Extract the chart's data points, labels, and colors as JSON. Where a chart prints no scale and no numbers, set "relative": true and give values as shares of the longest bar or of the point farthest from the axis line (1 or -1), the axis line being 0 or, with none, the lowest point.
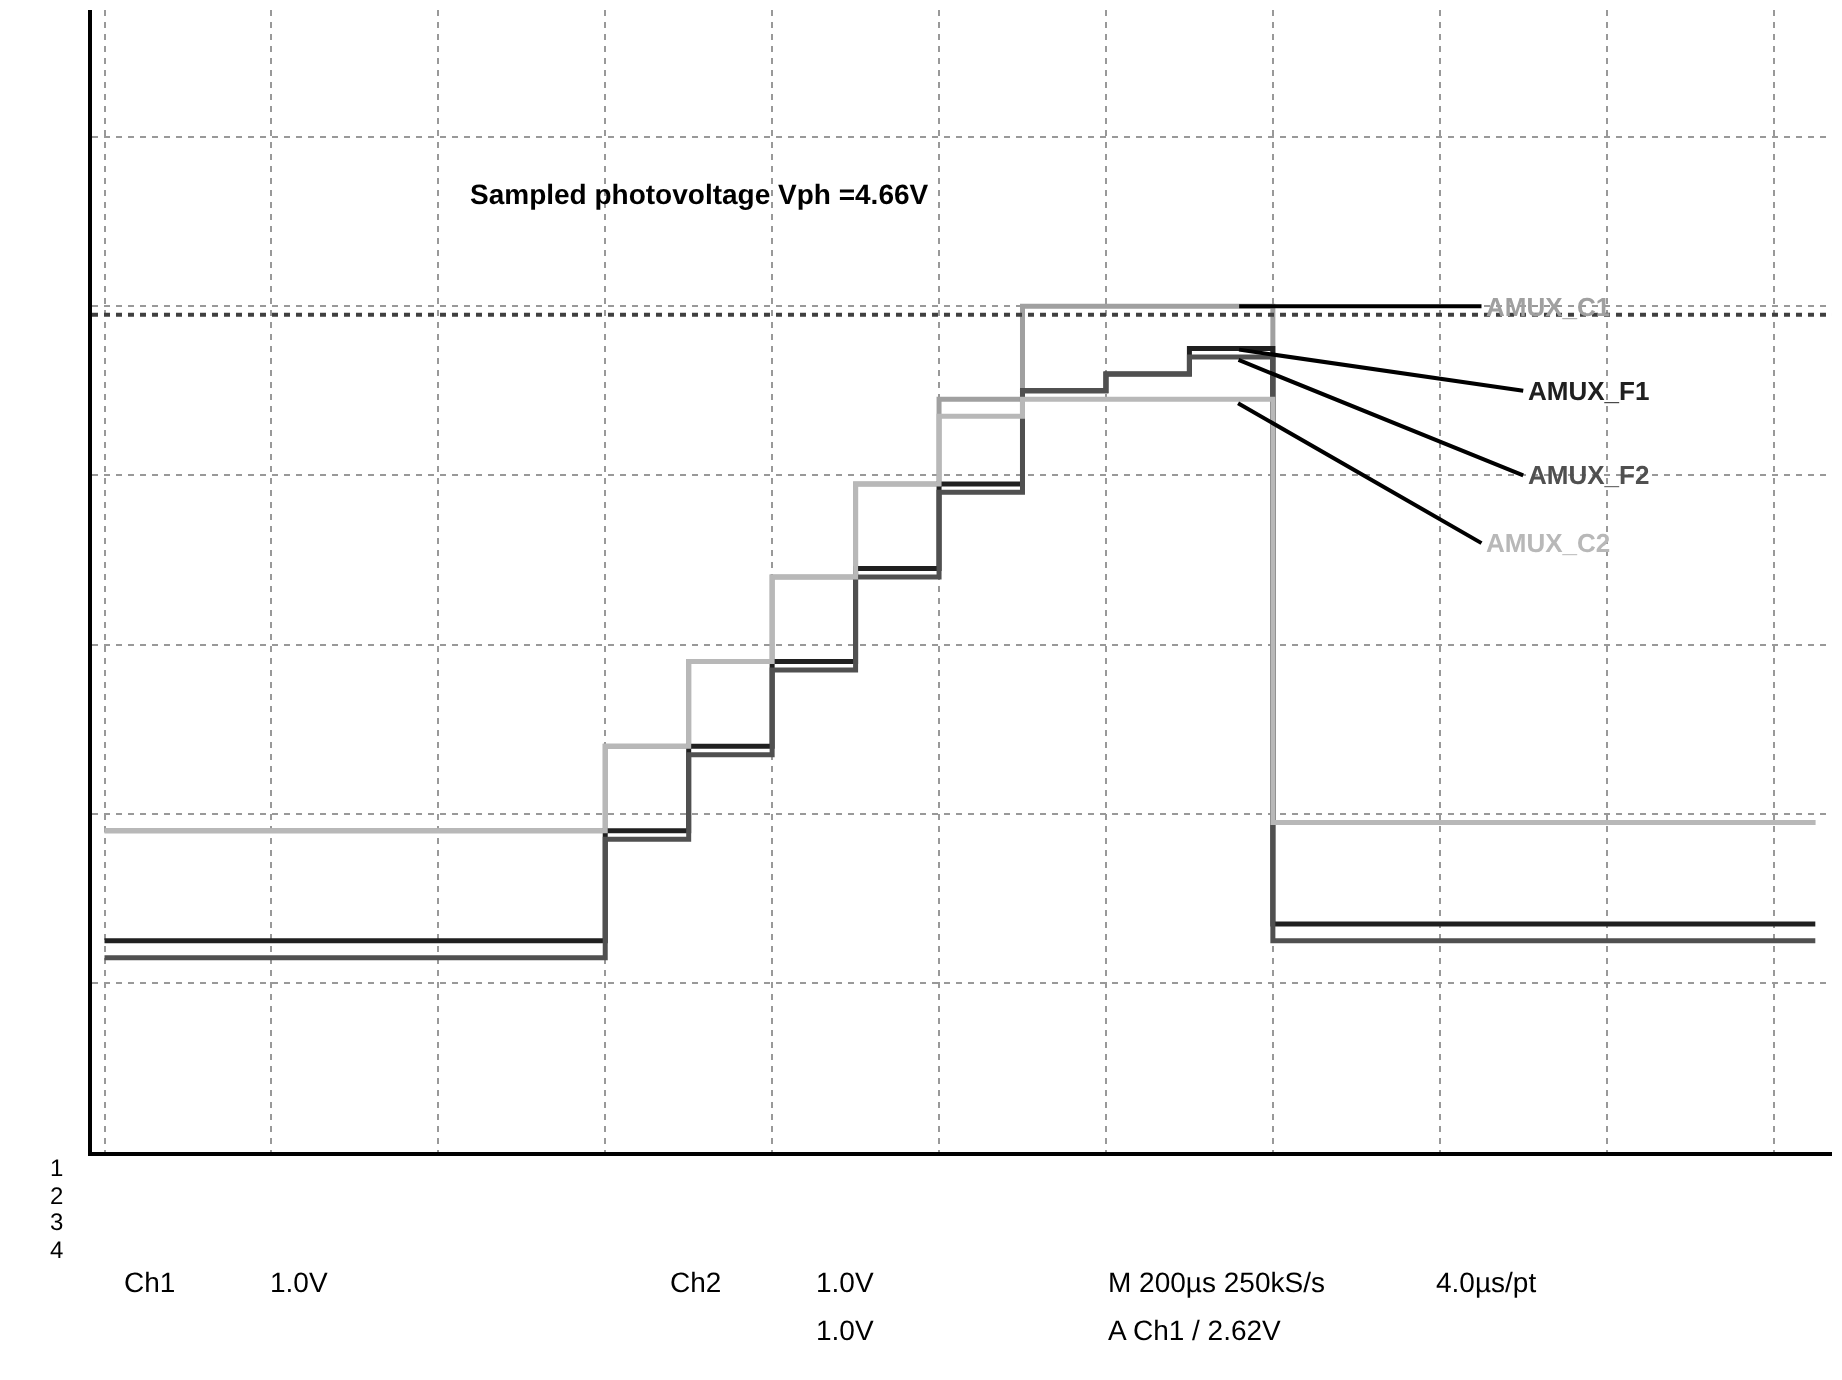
{
  "chart_data": {
    "type": "step",
    "relative": true,
    "categories": [
      null,
      null,
      null,
      null,
      null,
      null,
      null,
      null,
      null,
      null,
      null,
      null,
      null,
      null,
      null,
      null,
      null,
      null,
      null,
      null,
      null,
      null,
      null,
      null,
      null,
      null,
      null,
      null,
      null,
      null,
      null,
      null,
      null,
      null,
      null,
      null,
      null,
      null,
      null,
      null,
      null,
      null
    ],
    "series": [
      {
        "name": "AMUX_C1",
        "color": "#a0a0a0",
        "values": [
          0.38,
          0.38,
          0.38,
          0.38,
          0.38,
          0.38,
          0.38,
          0.38,
          0.38,
          0.38,
          0.38,
          0.38,
          0.48,
          0.48,
          0.58,
          0.58,
          0.68,
          0.68,
          0.79,
          0.79,
          0.89,
          0.89,
          1.0,
          1.0,
          1.0,
          1.0,
          1.0,
          1.0,
          0.39,
          0.39,
          0.39,
          0.39,
          0.39,
          0.39,
          0.39,
          0.39,
          0.39,
          0.39,
          0.39,
          0.39,
          0.39,
          0.39
        ]
      },
      {
        "name": "AMUX_F1",
        "color": "#202020",
        "values": [
          0.25,
          0.25,
          0.25,
          0.25,
          0.25,
          0.25,
          0.25,
          0.25,
          0.25,
          0.25,
          0.25,
          0.25,
          0.38,
          0.38,
          0.48,
          0.48,
          0.58,
          0.58,
          0.69,
          0.69,
          0.79,
          0.79,
          0.9,
          0.9,
          0.92,
          0.92,
          0.95,
          0.95,
          0.27,
          0.27,
          0.27,
          0.27,
          0.27,
          0.27,
          0.27,
          0.27,
          0.27,
          0.27,
          0.27,
          0.27,
          0.27,
          0.27
        ]
      },
      {
        "name": "AMUX_F2",
        "color": "#505050",
        "values": [
          0.23,
          0.23,
          0.23,
          0.23,
          0.23,
          0.23,
          0.23,
          0.23,
          0.23,
          0.23,
          0.23,
          0.23,
          0.37,
          0.37,
          0.47,
          0.47,
          0.57,
          0.57,
          0.68,
          0.68,
          0.78,
          0.78,
          0.9,
          0.9,
          0.92,
          0.92,
          0.94,
          0.94,
          0.25,
          0.25,
          0.25,
          0.25,
          0.25,
          0.25,
          0.25,
          0.25,
          0.25,
          0.25,
          0.25,
          0.25,
          0.25,
          0.25
        ]
      },
      {
        "name": "AMUX_C2",
        "color": "#b8b8b8",
        "values": [
          0.38,
          0.38,
          0.38,
          0.38,
          0.38,
          0.38,
          0.38,
          0.38,
          0.38,
          0.38,
          0.38,
          0.38,
          0.48,
          0.48,
          0.58,
          0.58,
          0.68,
          0.68,
          0.79,
          0.79,
          0.87,
          0.87,
          0.89,
          0.89,
          0.89,
          0.89,
          0.89,
          0.89,
          0.39,
          0.39,
          0.39,
          0.39,
          0.39,
          0.39,
          0.39,
          0.39,
          0.39,
          0.39,
          0.39,
          0.39,
          0.39,
          0.39
        ]
      }
    ],
    "ref_lines": [
      {
        "axis": "y",
        "value": 0.99,
        "color": "#404040",
        "line_style": "dotted"
      }
    ],
    "annotations": [
      "Sampled photovoltage Vph =4.66V",
      "1",
      "2",
      "3",
      "4",
      "Ch1",
      "1.0V",
      "Ch2",
      "1.0V",
      "1.0V",
      "M 200µs 250kS/s",
      "4.0µs/pt",
      "A Ch1 / 2.62V"
    ],
    "grid": true,
    "legend": false,
    "marker": "none",
    "line_style": "solid"
  }
}
